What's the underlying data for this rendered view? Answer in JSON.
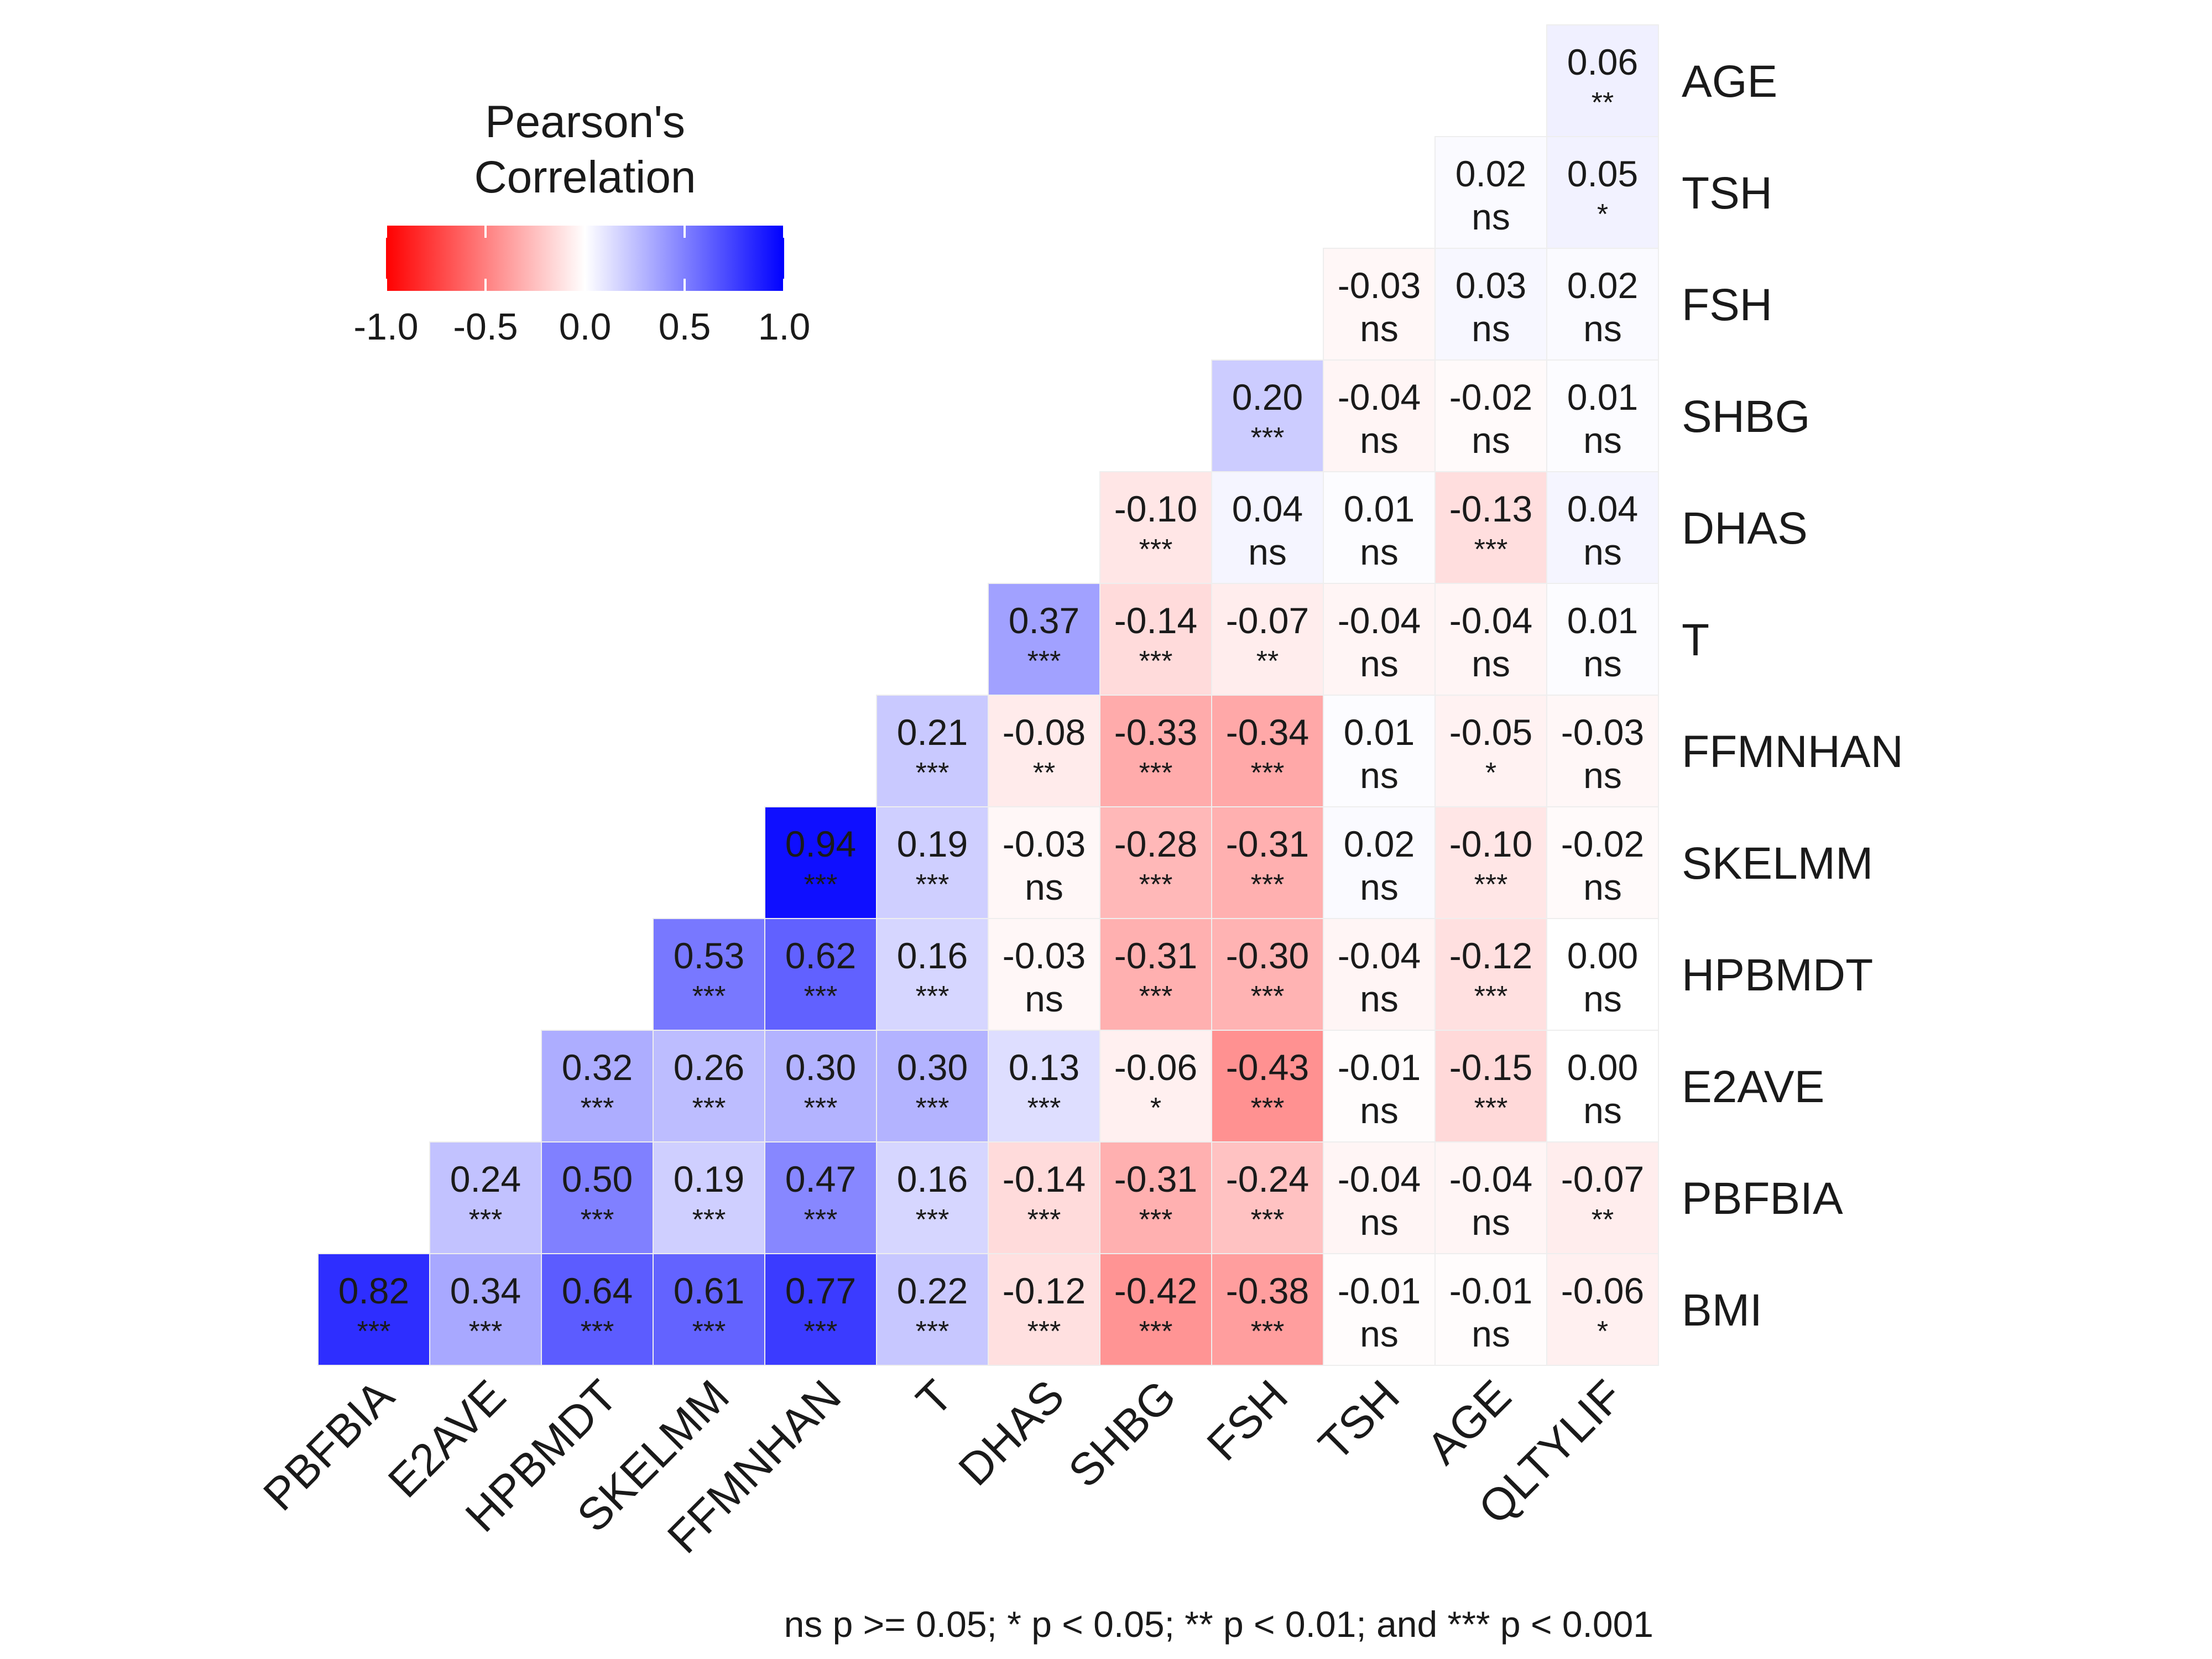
{
  "chart_data": {
    "type": "heatmap",
    "rows": [
      "AGE",
      "TSH",
      "FSH",
      "SHBG",
      "DHAS",
      "T",
      "FFMNHAN",
      "SKELMM",
      "HPBMDT",
      "E2AVE",
      "PBFBIA",
      "BMI"
    ],
    "columns": [
      "PBFBIA",
      "E2AVE",
      "HPBMDT",
      "SKELMM",
      "FFMNHAN",
      "T",
      "DHAS",
      "SHBG",
      "FSH",
      "TSH",
      "AGE",
      "QLTYLIF"
    ],
    "cells": [
      {
        "row": "AGE",
        "col": "QLTYLIF",
        "value": 0.06,
        "value_label": "0.06",
        "sig": "**"
      },
      {
        "row": "TSH",
        "col": "AGE",
        "value": 0.02,
        "value_label": "0.02",
        "sig": "ns"
      },
      {
        "row": "TSH",
        "col": "QLTYLIF",
        "value": 0.05,
        "value_label": "0.05",
        "sig": "*"
      },
      {
        "row": "FSH",
        "col": "TSH",
        "value": -0.03,
        "value_label": "-0.03",
        "sig": "ns"
      },
      {
        "row": "FSH",
        "col": "AGE",
        "value": 0.03,
        "value_label": "0.03",
        "sig": "ns"
      },
      {
        "row": "FSH",
        "col": "QLTYLIF",
        "value": 0.02,
        "value_label": "0.02",
        "sig": "ns"
      },
      {
        "row": "SHBG",
        "col": "FSH",
        "value": 0.2,
        "value_label": "0.20",
        "sig": "***"
      },
      {
        "row": "SHBG",
        "col": "TSH",
        "value": -0.04,
        "value_label": "-0.04",
        "sig": "ns"
      },
      {
        "row": "SHBG",
        "col": "AGE",
        "value": -0.02,
        "value_label": "-0.02",
        "sig": "ns"
      },
      {
        "row": "SHBG",
        "col": "QLTYLIF",
        "value": 0.01,
        "value_label": "0.01",
        "sig": "ns"
      },
      {
        "row": "DHAS",
        "col": "SHBG",
        "value": -0.1,
        "value_label": "-0.10",
        "sig": "***"
      },
      {
        "row": "DHAS",
        "col": "FSH",
        "value": 0.04,
        "value_label": "0.04",
        "sig": "ns"
      },
      {
        "row": "DHAS",
        "col": "TSH",
        "value": 0.01,
        "value_label": "0.01",
        "sig": "ns"
      },
      {
        "row": "DHAS",
        "col": "AGE",
        "value": -0.13,
        "value_label": "-0.13",
        "sig": "***"
      },
      {
        "row": "DHAS",
        "col": "QLTYLIF",
        "value": 0.04,
        "value_label": "0.04",
        "sig": "ns"
      },
      {
        "row": "T",
        "col": "DHAS",
        "value": 0.37,
        "value_label": "0.37",
        "sig": "***"
      },
      {
        "row": "T",
        "col": "SHBG",
        "value": -0.14,
        "value_label": "-0.14",
        "sig": "***"
      },
      {
        "row": "T",
        "col": "FSH",
        "value": -0.07,
        "value_label": "-0.07",
        "sig": "**"
      },
      {
        "row": "T",
        "col": "TSH",
        "value": -0.04,
        "value_label": "-0.04",
        "sig": "ns"
      },
      {
        "row": "T",
        "col": "AGE",
        "value": -0.04,
        "value_label": "-0.04",
        "sig": "ns"
      },
      {
        "row": "T",
        "col": "QLTYLIF",
        "value": 0.01,
        "value_label": "0.01",
        "sig": "ns"
      },
      {
        "row": "FFMNHAN",
        "col": "T",
        "value": 0.21,
        "value_label": "0.21",
        "sig": "***"
      },
      {
        "row": "FFMNHAN",
        "col": "DHAS",
        "value": -0.08,
        "value_label": "-0.08",
        "sig": "**"
      },
      {
        "row": "FFMNHAN",
        "col": "SHBG",
        "value": -0.33,
        "value_label": "-0.33",
        "sig": "***"
      },
      {
        "row": "FFMNHAN",
        "col": "FSH",
        "value": -0.34,
        "value_label": "-0.34",
        "sig": "***"
      },
      {
        "row": "FFMNHAN",
        "col": "TSH",
        "value": 0.01,
        "value_label": "0.01",
        "sig": "ns"
      },
      {
        "row": "FFMNHAN",
        "col": "AGE",
        "value": -0.05,
        "value_label": "-0.05",
        "sig": "*"
      },
      {
        "row": "FFMNHAN",
        "col": "QLTYLIF",
        "value": -0.03,
        "value_label": "-0.03",
        "sig": "ns"
      },
      {
        "row": "SKELMM",
        "col": "FFMNHAN",
        "value": 0.94,
        "value_label": "0.94",
        "sig": "***"
      },
      {
        "row": "SKELMM",
        "col": "T",
        "value": 0.19,
        "value_label": "0.19",
        "sig": "***"
      },
      {
        "row": "SKELMM",
        "col": "DHAS",
        "value": -0.03,
        "value_label": "-0.03",
        "sig": "ns"
      },
      {
        "row": "SKELMM",
        "col": "SHBG",
        "value": -0.28,
        "value_label": "-0.28",
        "sig": "***"
      },
      {
        "row": "SKELMM",
        "col": "FSH",
        "value": -0.31,
        "value_label": "-0.31",
        "sig": "***"
      },
      {
        "row": "SKELMM",
        "col": "TSH",
        "value": 0.02,
        "value_label": "0.02",
        "sig": "ns"
      },
      {
        "row": "SKELMM",
        "col": "AGE",
        "value": -0.1,
        "value_label": "-0.10",
        "sig": "***"
      },
      {
        "row": "SKELMM",
        "col": "QLTYLIF",
        "value": -0.02,
        "value_label": "-0.02",
        "sig": "ns"
      },
      {
        "row": "HPBMDT",
        "col": "SKELMM",
        "value": 0.53,
        "value_label": "0.53",
        "sig": "***"
      },
      {
        "row": "HPBMDT",
        "col": "FFMNHAN",
        "value": 0.62,
        "value_label": "0.62",
        "sig": "***"
      },
      {
        "row": "HPBMDT",
        "col": "T",
        "value": 0.16,
        "value_label": "0.16",
        "sig": "***"
      },
      {
        "row": "HPBMDT",
        "col": "DHAS",
        "value": -0.03,
        "value_label": "-0.03",
        "sig": "ns"
      },
      {
        "row": "HPBMDT",
        "col": "SHBG",
        "value": -0.31,
        "value_label": "-0.31",
        "sig": "***"
      },
      {
        "row": "HPBMDT",
        "col": "FSH",
        "value": -0.3,
        "value_label": "-0.30",
        "sig": "***"
      },
      {
        "row": "HPBMDT",
        "col": "TSH",
        "value": -0.04,
        "value_label": "-0.04",
        "sig": "ns"
      },
      {
        "row": "HPBMDT",
        "col": "AGE",
        "value": -0.12,
        "value_label": "-0.12",
        "sig": "***"
      },
      {
        "row": "HPBMDT",
        "col": "QLTYLIF",
        "value": 0.0,
        "value_label": "0.00",
        "sig": "ns"
      },
      {
        "row": "E2AVE",
        "col": "HPBMDT",
        "value": 0.32,
        "value_label": "0.32",
        "sig": "***"
      },
      {
        "row": "E2AVE",
        "col": "SKELMM",
        "value": 0.26,
        "value_label": "0.26",
        "sig": "***"
      },
      {
        "row": "E2AVE",
        "col": "FFMNHAN",
        "value": 0.3,
        "value_label": "0.30",
        "sig": "***"
      },
      {
        "row": "E2AVE",
        "col": "T",
        "value": 0.3,
        "value_label": "0.30",
        "sig": "***"
      },
      {
        "row": "E2AVE",
        "col": "DHAS",
        "value": 0.13,
        "value_label": "0.13",
        "sig": "***"
      },
      {
        "row": "E2AVE",
        "col": "SHBG",
        "value": -0.06,
        "value_label": "-0.06",
        "sig": "*"
      },
      {
        "row": "E2AVE",
        "col": "FSH",
        "value": -0.43,
        "value_label": "-0.43",
        "sig": "***"
      },
      {
        "row": "E2AVE",
        "col": "TSH",
        "value": -0.01,
        "value_label": "-0.01",
        "sig": "ns"
      },
      {
        "row": "E2AVE",
        "col": "AGE",
        "value": -0.15,
        "value_label": "-0.15",
        "sig": "***"
      },
      {
        "row": "E2AVE",
        "col": "QLTYLIF",
        "value": 0.0,
        "value_label": "0.00",
        "sig": "ns"
      },
      {
        "row": "PBFBIA",
        "col": "E2AVE",
        "value": 0.24,
        "value_label": "0.24",
        "sig": "***"
      },
      {
        "row": "PBFBIA",
        "col": "HPBMDT",
        "value": 0.5,
        "value_label": "0.50",
        "sig": "***"
      },
      {
        "row": "PBFBIA",
        "col": "SKELMM",
        "value": 0.19,
        "value_label": "0.19",
        "sig": "***"
      },
      {
        "row": "PBFBIA",
        "col": "FFMNHAN",
        "value": 0.47,
        "value_label": "0.47",
        "sig": "***"
      },
      {
        "row": "PBFBIA",
        "col": "T",
        "value": 0.16,
        "value_label": "0.16",
        "sig": "***"
      },
      {
        "row": "PBFBIA",
        "col": "DHAS",
        "value": -0.14,
        "value_label": "-0.14",
        "sig": "***"
      },
      {
        "row": "PBFBIA",
        "col": "SHBG",
        "value": -0.31,
        "value_label": "-0.31",
        "sig": "***"
      },
      {
        "row": "PBFBIA",
        "col": "FSH",
        "value": -0.24,
        "value_label": "-0.24",
        "sig": "***"
      },
      {
        "row": "PBFBIA",
        "col": "TSH",
        "value": -0.04,
        "value_label": "-0.04",
        "sig": "ns"
      },
      {
        "row": "PBFBIA",
        "col": "AGE",
        "value": -0.04,
        "value_label": "-0.04",
        "sig": "ns"
      },
      {
        "row": "PBFBIA",
        "col": "QLTYLIF",
        "value": -0.07,
        "value_label": "-0.07",
        "sig": "**"
      },
      {
        "row": "BMI",
        "col": "PBFBIA",
        "value": 0.82,
        "value_label": "0.82",
        "sig": "***"
      },
      {
        "row": "BMI",
        "col": "E2AVE",
        "value": 0.34,
        "value_label": "0.34",
        "sig": "***"
      },
      {
        "row": "BMI",
        "col": "HPBMDT",
        "value": 0.64,
        "value_label": "0.64",
        "sig": "***"
      },
      {
        "row": "BMI",
        "col": "SKELMM",
        "value": 0.61,
        "value_label": "0.61",
        "sig": "***"
      },
      {
        "row": "BMI",
        "col": "FFMNHAN",
        "value": 0.77,
        "value_label": "0.77",
        "sig": "***"
      },
      {
        "row": "BMI",
        "col": "T",
        "value": 0.22,
        "value_label": "0.22",
        "sig": "***"
      },
      {
        "row": "BMI",
        "col": "DHAS",
        "value": -0.12,
        "value_label": "-0.12",
        "sig": "***"
      },
      {
        "row": "BMI",
        "col": "SHBG",
        "value": -0.42,
        "value_label": "-0.42",
        "sig": "***"
      },
      {
        "row": "BMI",
        "col": "FSH",
        "value": -0.38,
        "value_label": "-0.38",
        "sig": "***"
      },
      {
        "row": "BMI",
        "col": "TSH",
        "value": -0.01,
        "value_label": "-0.01",
        "sig": "ns"
      },
      {
        "row": "BMI",
        "col": "AGE",
        "value": -0.01,
        "value_label": "-0.01",
        "sig": "ns"
      },
      {
        "row": "BMI",
        "col": "QLTYLIF",
        "value": -0.06,
        "value_label": "-0.06",
        "sig": "*"
      }
    ],
    "legend": {
      "title_lines": [
        "Pearson's",
        "Correlation"
      ],
      "ticks": [
        -1.0,
        -0.5,
        0.0,
        0.5,
        1.0
      ],
      "tick_labels": [
        "-1.0",
        "-0.5",
        "0.0",
        "0.5",
        "1.0"
      ],
      "range": [
        -1,
        1
      ],
      "colors": {
        "low": "#ff0000",
        "mid": "#ffffff",
        "high": "#0000ff"
      },
      "placement": "top-left"
    },
    "footnote": "ns p >= 0.05; * p < 0.05; ** p < 0.01; and *** p < 0.001"
  }
}
